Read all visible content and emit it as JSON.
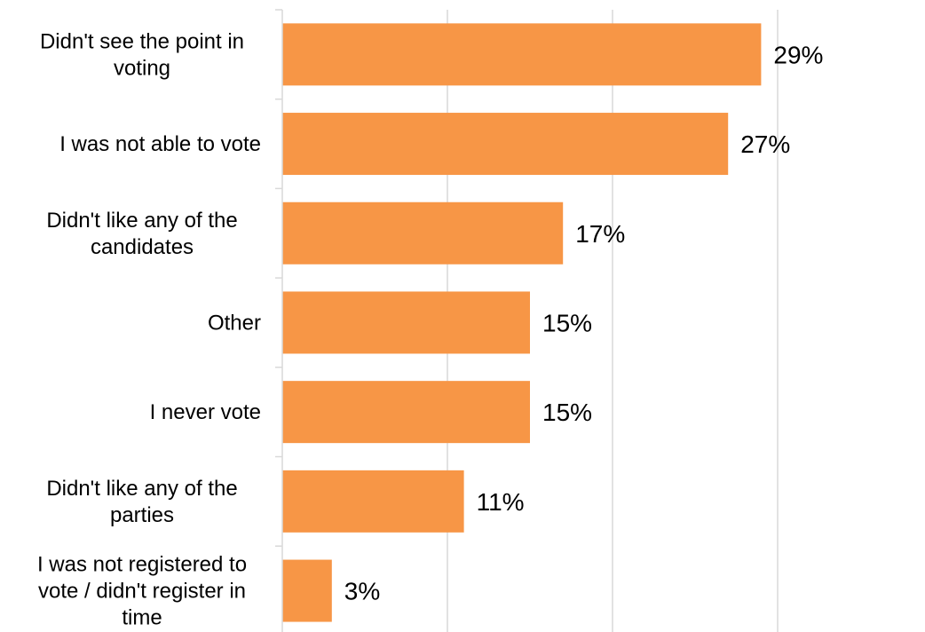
{
  "chart_data": {
    "type": "bar",
    "orientation": "horizontal",
    "categories": [
      [
        "Didn't see the point in",
        "voting"
      ],
      [
        "I was not able to vote"
      ],
      [
        "Didn't like any of the",
        "candidates"
      ],
      [
        "Other"
      ],
      [
        "I never vote"
      ],
      [
        "Didn't like any of the",
        "parties"
      ],
      [
        "I was not registered to",
        "vote / didn't register in",
        "time"
      ]
    ],
    "values": [
      29,
      27,
      17,
      15,
      15,
      11,
      3
    ],
    "value_labels": [
      "29%",
      "27%",
      "17%",
      "15%",
      "15%",
      "11%",
      "3%"
    ],
    "xlim": [
      0,
      40
    ],
    "gridlines_at": [
      0,
      10,
      20,
      30
    ],
    "grid": true,
    "bar_color": "#f79646",
    "title": "",
    "xlabel": "",
    "ylabel": ""
  }
}
